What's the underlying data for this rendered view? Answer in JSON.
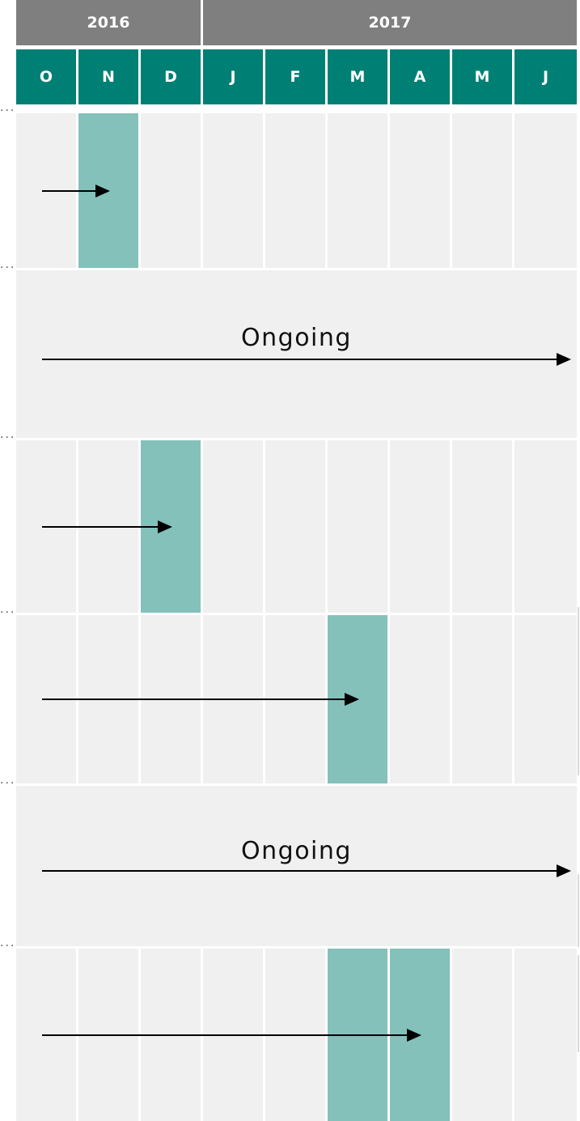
{
  "years": [
    "2016",
    "2017"
  ],
  "months": [
    "O",
    "N",
    "D",
    "J",
    "F",
    "M",
    "A",
    "M",
    "J"
  ],
  "lanes": [
    {
      "type": "bars",
      "bars": [
        1
      ],
      "arrow_to": 1.5
    },
    {
      "type": "ongoing",
      "label": "Ongoing"
    },
    {
      "type": "bars",
      "bars": [
        2
      ],
      "arrow_to": 2.5
    },
    {
      "type": "bars",
      "bars": [
        5
      ],
      "arrow_to": 5.5
    },
    {
      "type": "ongoing",
      "label": "Ongoing"
    },
    {
      "type": "bars",
      "bars": [
        5,
        6
      ],
      "arrow_to": 6.5
    }
  ],
  "colors": {
    "year_header": "#7f7f7f",
    "month_header": "#008075",
    "lane_background": "#f0f0f0",
    "bar": "#84c1bb",
    "arrow": "#000000"
  }
}
